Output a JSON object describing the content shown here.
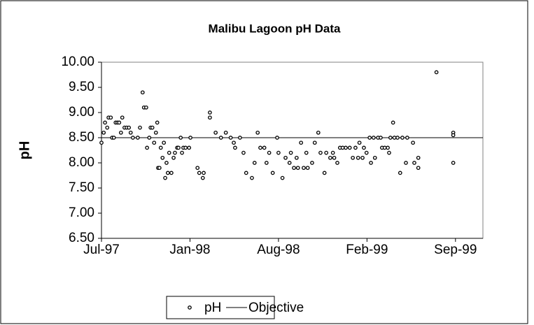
{
  "chart_data": {
    "type": "scatter",
    "title": "Malibu Lagoon pH Data",
    "y_label": "pH",
    "xlim": [
      35612,
      36474
    ],
    "xticks": [
      {
        "value": 35612,
        "label": "Jul-97"
      },
      {
        "value": 35812,
        "label": "Jan-98"
      },
      {
        "value": 36012,
        "label": "Aug-98"
      },
      {
        "value": 36212,
        "label": "Feb-99"
      },
      {
        "value": 36412,
        "label": "Sep-99"
      }
    ],
    "ylim": [
      6.5,
      10
    ],
    "yticks": [
      {
        "value": 6.5,
        "label": "6.50"
      },
      {
        "value": 7,
        "label": "7.00"
      },
      {
        "value": 7.5,
        "label": "7.50"
      },
      {
        "value": 8,
        "label": "8.00"
      },
      {
        "value": 8.5,
        "label": "8.50"
      },
      {
        "value": 9,
        "label": "9.00"
      },
      {
        "value": 9.5,
        "label": "9.50"
      },
      {
        "value": 10,
        "label": "10.00"
      }
    ],
    "series": [
      {
        "name": "pH",
        "color": "#000000",
        "x": [
          35612,
          35617,
          35620,
          35625,
          35628,
          35633,
          35636,
          35640,
          35644,
          35648,
          35652,
          35656,
          35659,
          35664,
          35669,
          35674,
          35678,
          35683,
          35694,
          35699,
          35705,
          35708,
          35713,
          35715,
          35720,
          35723,
          35727,
          35731,
          35735,
          35738,
          35740,
          35743,
          35746,
          35750,
          35753,
          35756,
          35759,
          35762,
          35765,
          35770,
          35775,
          35778,
          35783,
          35786,
          35791,
          35794,
          35797,
          35802,
          35810,
          35813,
          35829,
          35833,
          35841,
          35843,
          35857,
          35857,
          35870,
          35882,
          35893,
          35904,
          35911,
          35914,
          35925,
          35933,
          35939,
          35952,
          35958,
          35965,
          35971,
          35980,
          35985,
          35991,
          35999,
          36009,
          36012,
          36021,
          36028,
          36037,
          36040,
          36047,
          36053,
          36056,
          36063,
          36069,
          36075,
          36078,
          36088,
          36094,
          36102,
          36107,
          36116,
          36120,
          36129,
          36135,
          36138,
          36145,
          36151,
          36157,
          36164,
          36173,
          36180,
          36186,
          36192,
          36195,
          36202,
          36205,
          36211,
          36218,
          36221,
          36227,
          36230,
          36237,
          36243,
          36246,
          36252,
          36259,
          36262,
          36265,
          36271,
          36274,
          36281,
          36287,
          36292,
          36300,
          36303,
          36316,
          36319,
          36328,
          36328,
          36369,
          36407,
          36407,
          36407
        ],
        "values": [
          8.4,
          8.6,
          8.8,
          8.7,
          8.9,
          8.9,
          8.5,
          8.5,
          8.8,
          8.8,
          8.8,
          8.6,
          8.9,
          8.7,
          8.7,
          8.7,
          8.6,
          8.5,
          8.5,
          8.7,
          9.4,
          9.1,
          9.1,
          8.3,
          8.5,
          8.7,
          8.7,
          8.4,
          8.6,
          8.8,
          7.9,
          7.9,
          8.3,
          8.1,
          8.4,
          7.7,
          8.0,
          7.8,
          8.2,
          7.8,
          8.1,
          8.2,
          8.3,
          8.3,
          8.5,
          8.2,
          8.3,
          8.3,
          8.3,
          8.5,
          7.9,
          7.8,
          7.7,
          7.8,
          9.0,
          8.9,
          8.6,
          8.5,
          8.6,
          8.5,
          8.4,
          8.3,
          8.5,
          8.2,
          7.8,
          7.7,
          8.0,
          8.6,
          8.3,
          8.3,
          8.0,
          8.2,
          7.8,
          8.5,
          8.2,
          7.7,
          8.1,
          8.0,
          8.2,
          7.9,
          8.1,
          7.9,
          8.4,
          7.9,
          8.2,
          7.9,
          8.0,
          8.4,
          8.6,
          8.2,
          7.8,
          8.2,
          8.1,
          8.2,
          8.1,
          8.0,
          8.3,
          8.3,
          8.3,
          8.3,
          8.1,
          8.3,
          8.1,
          8.4,
          8.1,
          8.3,
          8.2,
          8.5,
          8.0,
          8.5,
          8.1,
          8.5,
          8.5,
          8.3,
          8.3,
          8.3,
          8.2,
          8.5,
          8.8,
          8.5,
          8.5,
          7.8,
          8.5,
          8.0,
          8.5,
          8.4,
          8.0,
          7.9,
          8.1,
          9.8,
          8.6,
          8.55,
          8.0
        ]
      }
    ],
    "objective": {
      "name": "Objective",
      "value": 8.5
    },
    "legend": "bottom"
  }
}
